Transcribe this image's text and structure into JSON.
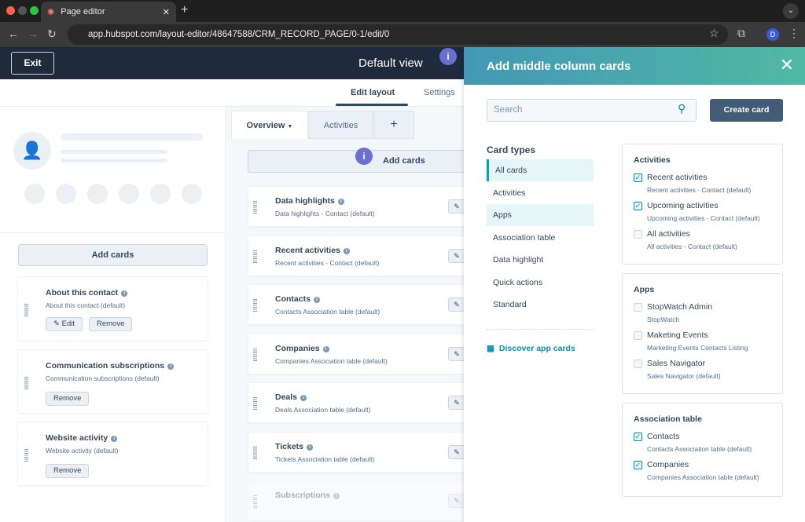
{
  "browser": {
    "tab_title": "Page editor",
    "url": "app.hubspot.com/layout-editor/48647588/CRM_RECORD_PAGE/0-1/edit/0",
    "profile_initial": "D"
  },
  "header": {
    "exit": "Exit",
    "title": "Default view",
    "info": "i"
  },
  "subnav": {
    "edit_layout": "Edit layout",
    "settings": "Settings"
  },
  "left": {
    "add_cards": "Add cards",
    "cards": [
      {
        "title": "About this contact",
        "subtitle": "About this contact (default)",
        "edit": "Edit",
        "remove": "Remove"
      },
      {
        "title": "Communication subscriptions",
        "subtitle": "Communication subscriptions (default)",
        "remove": "Remove"
      },
      {
        "title": "Website activity",
        "subtitle": "Website activity (default)",
        "remove": "Remove"
      }
    ]
  },
  "middle": {
    "tabs": [
      {
        "label": "Overview"
      },
      {
        "label": "Activities"
      },
      {
        "label": "+"
      }
    ],
    "add_cards": "Add cards",
    "cards": [
      {
        "title": "Data highlights",
        "subtitle": "Data highlights - Contact (default)"
      },
      {
        "title": "Recent activities",
        "subtitle": "Recent activities - Contact (default)"
      },
      {
        "title": "Contacts",
        "subtitle": "Contacts Association table (default)"
      },
      {
        "title": "Companies",
        "subtitle": "Companies Association table (default)"
      },
      {
        "title": "Deals",
        "subtitle": "Deals Association table (default)"
      },
      {
        "title": "Tickets",
        "subtitle": "Tickets Association table (default)"
      },
      {
        "title": "Subscriptions",
        "subtitle": ""
      }
    ]
  },
  "panel": {
    "title": "Add middle column cards",
    "search_placeholder": "Search",
    "create_card": "Create card",
    "card_types_label": "Card types",
    "card_types": [
      "All cards",
      "Activities",
      "Apps",
      "Association table",
      "Data highlight",
      "Quick actions",
      "Standard"
    ],
    "selected_type": "All cards",
    "discover": "Discover app cards",
    "groups": [
      {
        "title": "Activities",
        "options": [
          {
            "label": "Recent activities",
            "sub": "Recent activities - Contact (default)",
            "checked": true
          },
          {
            "label": "Upcoming activities",
            "sub": "Upcoming activities - Contact (default)",
            "checked": true
          },
          {
            "label": "All activities",
            "sub": "All activities - Contact (default)",
            "checked": false
          }
        ]
      },
      {
        "title": "Apps",
        "options": [
          {
            "label": "StopWatch Admin",
            "sub": "StopWatch",
            "checked": false
          },
          {
            "label": "Maketing Events",
            "sub": "Marketing Events Contacts Listing",
            "checked": false
          },
          {
            "label": "Sales Navigator",
            "sub": "Sales Navigator (default)",
            "checked": false
          }
        ]
      },
      {
        "title": "Association table",
        "options": [
          {
            "label": "Contacts",
            "sub": "Contacts Association table (default)",
            "checked": true
          },
          {
            "label": "Companies",
            "sub": "Companies Association table (default)",
            "checked": true
          }
        ]
      }
    ]
  },
  "colors": {
    "header": "#1f2a3c",
    "accent": "#0091ae",
    "info_badge": "#6a6fd1",
    "create_button": "#425b76"
  }
}
